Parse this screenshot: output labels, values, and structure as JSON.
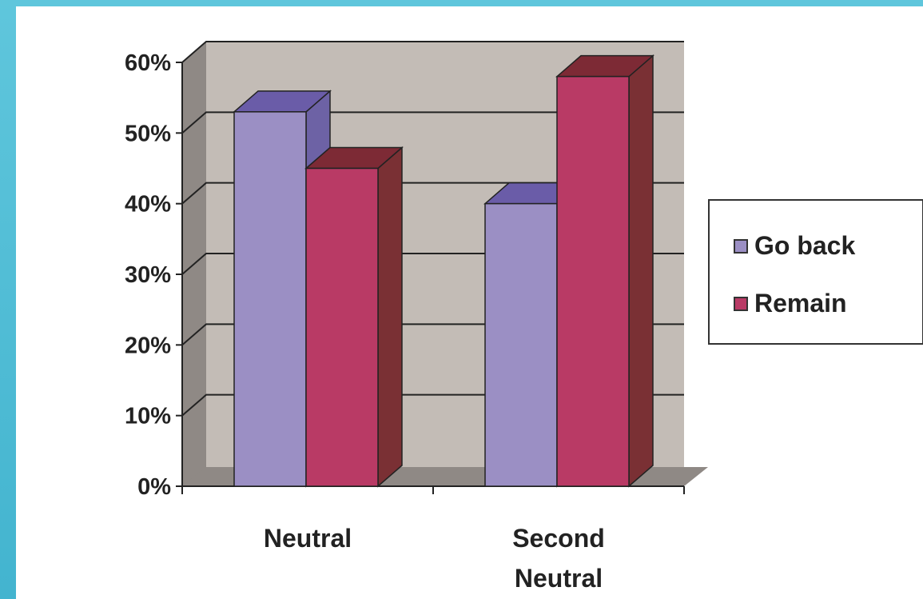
{
  "chart_data": {
    "type": "bar",
    "categories": [
      "Neutral",
      "Second\nNeutral"
    ],
    "category_lines": [
      [
        "Neutral"
      ],
      [
        "Second",
        "Neutral"
      ]
    ],
    "series": [
      {
        "name": "Go back",
        "values": [
          53,
          40
        ],
        "color": "#9b8fc4",
        "top_color": "#6a5ca8",
        "side_color": "#6d62a5"
      },
      {
        "name": "Remain",
        "values": [
          45,
          58
        ],
        "color": "#b93a65",
        "top_color": "#7d2a35",
        "side_color": "#7a3034"
      }
    ],
    "y_ticks": [
      "0%",
      "10%",
      "20%",
      "30%",
      "40%",
      "50%",
      "60%"
    ],
    "ylim": [
      0,
      60
    ],
    "y_unit": "%",
    "grid": true,
    "legend_position": "right",
    "plot_background": "#c3bcb6"
  }
}
